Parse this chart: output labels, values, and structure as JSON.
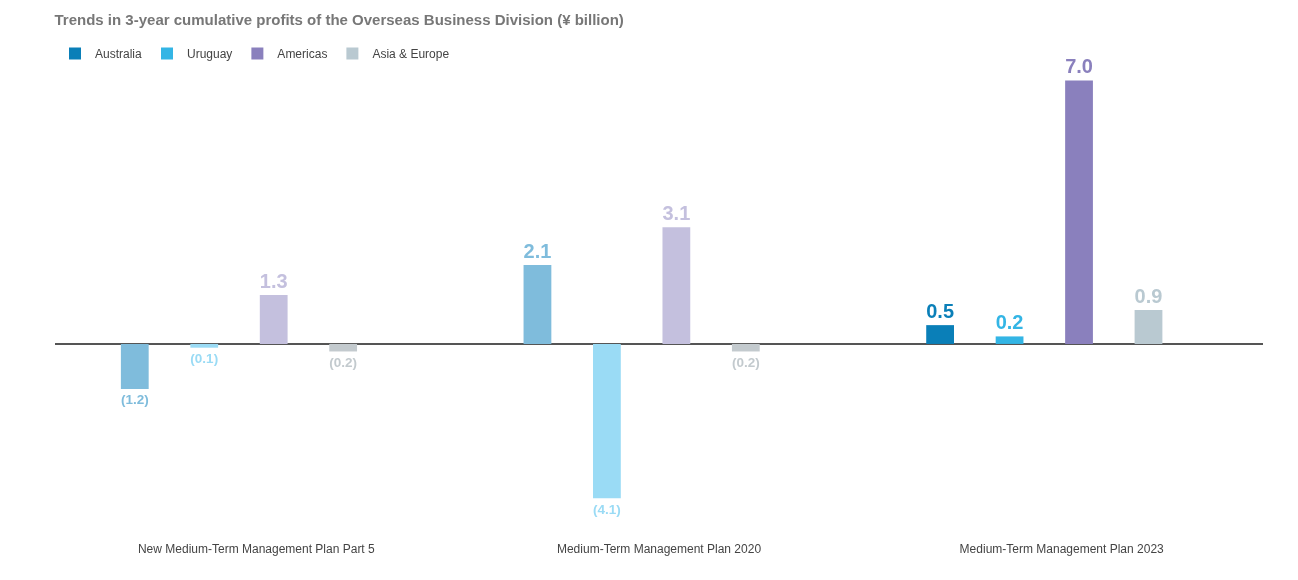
{
  "chart_data": {
    "type": "bar",
    "title": "Trends in 3-year cumulative profits of the Overseas Business Division (¥ billion)",
    "categories": [
      "New Medium-Term Management Plan Part 5",
      "Medium-Term Management Plan 2020",
      "Medium-Term Management Plan 2023"
    ],
    "legend": "top left",
    "grid": false,
    "series": [
      {
        "name": "Australia",
        "color": "#0a7fb8",
        "colors": [
          "#7fbcdc",
          "#7fbcdc",
          "#0a7fb8"
        ],
        "values": [
          -1.2,
          2.1,
          0.5
        ],
        "value_labels": [
          "(1.2)",
          "2.1",
          "0.5"
        ]
      },
      {
        "name": "Uruguay",
        "color": "#33b5e5",
        "colors": [
          "#9adbf5",
          "#9adbf5",
          "#33b5e5"
        ],
        "values": [
          -0.1,
          -4.1,
          0.2
        ],
        "value_labels": [
          "(0.1)",
          "(4.1)",
          "0.2"
        ]
      },
      {
        "name": "Americas",
        "color": "#8a80bd",
        "colors": [
          "#c4c0de",
          "#c4c0de",
          "#8a80bd"
        ],
        "values": [
          1.3,
          3.1,
          7.0
        ],
        "value_labels": [
          "1.3",
          "3.1",
          "7.0"
        ]
      },
      {
        "name": "Asia & Europe",
        "color": "#b9c9d1",
        "colors": [
          "#c3cace",
          "#c3cace",
          "#b9c9d1"
        ],
        "values": [
          -0.2,
          -0.2,
          0.9
        ],
        "value_labels": [
          "(0.2)",
          "(0.2)",
          "0.9"
        ]
      }
    ]
  }
}
